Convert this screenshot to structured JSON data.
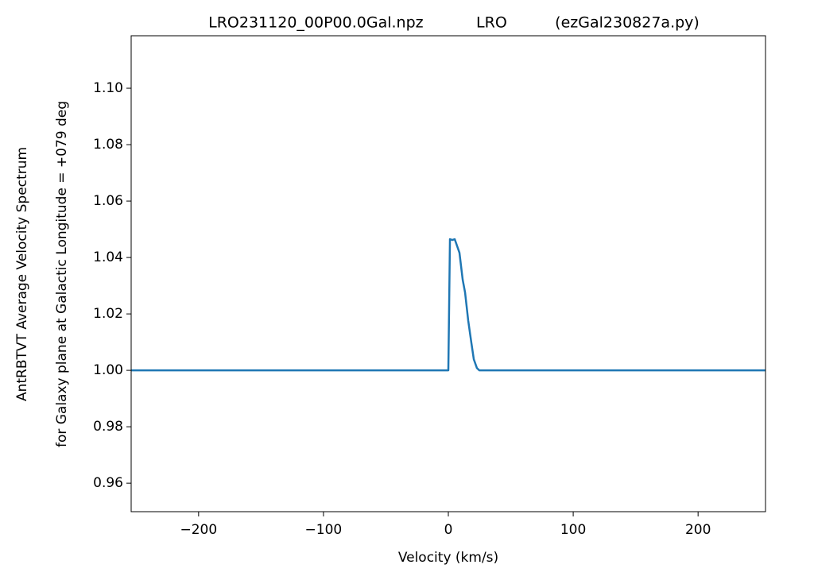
{
  "chart_data": {
    "type": "line",
    "title": "LRO231120_00P00.0Gal.npz           LRO          (ezGal230827a.py)",
    "xlabel": "Velocity (km/s)",
    "ylabel": [
      "AntRBTVT Average Velocity Spectrum",
      "for Galaxy plane at Galactic Longitude = +079 deg"
    ],
    "x": [
      -254,
      0,
      1.3,
      3.2,
      5.1,
      8.9,
      11.5,
      13.4,
      15.9,
      18.5,
      20.4,
      22.9,
      24.8,
      254
    ],
    "series": [
      {
        "color": "#1f77b4",
        "values": [
          1.0,
          1.0,
          1.0465,
          1.0462,
          1.0465,
          1.0417,
          1.0321,
          1.0276,
          1.0177,
          1.0096,
          1.0039,
          1.0008,
          1.0,
          1.0
        ]
      }
    ],
    "xlim": [
      -254,
      254
    ],
    "ylim": [
      0.9499,
      1.1186
    ],
    "xticks": [
      {
        "value": -200,
        "label": "−200"
      },
      {
        "value": -100,
        "label": "−100"
      },
      0,
      100,
      200
    ],
    "yticks": [
      0.96,
      0.98,
      {
        "value": 1.0,
        "label": "1.00"
      },
      1.02,
      1.04,
      1.06,
      1.08,
      {
        "value": 1.1,
        "label": "1.10"
      }
    ],
    "grid": false
  }
}
